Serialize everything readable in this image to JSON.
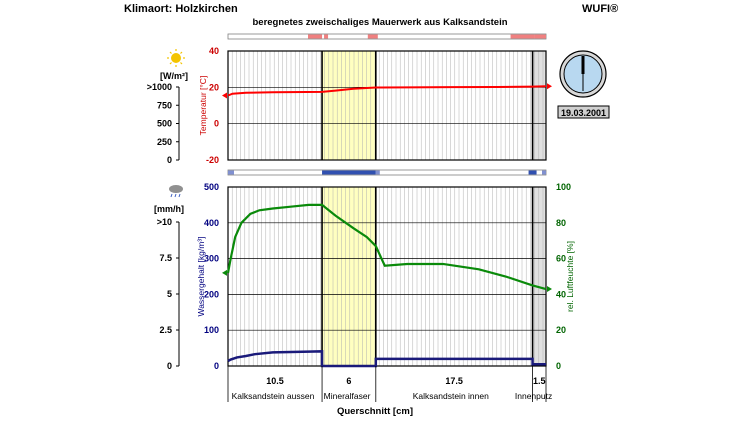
{
  "header": {
    "location_label": "Klimaort: Holzkirchen",
    "title": "beregnetes zweischaliges Mauerwerk aus Kalksandstein",
    "brand": "WUFI®"
  },
  "left_scales": {
    "radiation_unit": "[W/m²]",
    "radiation_ticks": [
      ">1000",
      "750",
      "500",
      "250",
      "0"
    ],
    "rain_unit": "[mm/h]",
    "rain_ticks": [
      ">10",
      "7.5",
      "5",
      "2.5",
      "0"
    ]
  },
  "clock": {
    "date": "19.03.2001"
  },
  "layers": {
    "thickness_labels": [
      "10.5",
      "6",
      "17.5",
      "1.5"
    ],
    "names": [
      "Kalksandstein aussen",
      "Mineralfaser",
      "Kalksandstein innen",
      "Innenputz"
    ],
    "fill_colors": [
      "#ffffff",
      "#ffffc0",
      "#ffffff",
      "#e0e0e0"
    ]
  },
  "x_axis_label": "Querschnitt [cm]",
  "colors": {
    "temperature": "#ff0000",
    "water": "#1a1a7a",
    "humidity": "#0a8a0a",
    "axis_red": "#cc0000",
    "axis_blue": "#000080",
    "axis_green": "#006400"
  },
  "chart_data": [
    {
      "type": "line",
      "name": "temperature-chart",
      "x_unit": "cm",
      "layer_boundaries": [
        0,
        10.5,
        16.5,
        34,
        35.5
      ],
      "ylabel": "Temperatur [°C]",
      "ylim": [
        -20,
        40
      ],
      "y_ticks": [
        "40",
        "20",
        "0",
        "-20"
      ],
      "series": [
        {
          "values_x": [
            0,
            0.5,
            2,
            5,
            10.5,
            12,
            14,
            16.5,
            20,
            25,
            30,
            34,
            35.5
          ],
          "values_y": [
            15.5,
            16.5,
            17,
            17.3,
            17.5,
            18.2,
            19.2,
            19.9,
            20,
            20.1,
            20.2,
            20.4,
            20.6
          ]
        }
      ]
    },
    {
      "type": "line",
      "name": "moisture-chart",
      "x_unit": "cm",
      "layer_boundaries": [
        0,
        10.5,
        16.5,
        34,
        35.5
      ],
      "ylabel": "Wassergehalt [kg/m³]",
      "ylim": [
        0,
        500
      ],
      "y_ticks": [
        "500",
        "400",
        "300",
        "200",
        "100",
        "0"
      ],
      "y2label": "rel. Luftfeuchte [%]",
      "y2lim": [
        0,
        100
      ],
      "y2_ticks": [
        "100",
        "80",
        "60",
        "40",
        "20",
        "0"
      ],
      "series": [
        {
          "axis": "left",
          "values_x": [
            0,
            0.3,
            1,
            2,
            3,
            5,
            7,
            9,
            10.5,
            10.5,
            16.5,
            16.5,
            34,
            34,
            35.5
          ],
          "values_y": [
            14,
            18,
            24,
            28,
            33,
            38,
            39,
            40,
            41,
            0,
            0,
            20,
            20,
            5,
            5
          ]
        },
        {
          "axis": "right",
          "values_x": [
            0,
            0.3,
            0.8,
            1.5,
            2.5,
            3.5,
            5,
            7,
            9,
            10.5,
            12,
            14,
            15.5,
            16.5,
            17.5,
            20,
            24,
            28,
            31,
            34,
            35.5
          ],
          "values_y": [
            52,
            60,
            72,
            80,
            85,
            87,
            88,
            89,
            90,
            90,
            84,
            77,
            72,
            67,
            56,
            57,
            57,
            54,
            50,
            45,
            43
          ]
        }
      ]
    }
  ]
}
